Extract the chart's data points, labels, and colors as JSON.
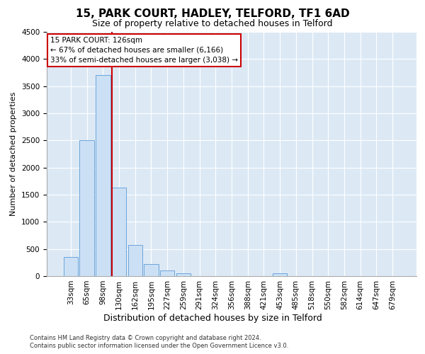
{
  "title1": "15, PARK COURT, HADLEY, TELFORD, TF1 6AD",
  "title2": "Size of property relative to detached houses in Telford",
  "xlabel": "Distribution of detached houses by size in Telford",
  "ylabel": "Number of detached properties",
  "categories": [
    "33sqm",
    "65sqm",
    "98sqm",
    "130sqm",
    "162sqm",
    "195sqm",
    "227sqm",
    "259sqm",
    "291sqm",
    "324sqm",
    "356sqm",
    "388sqm",
    "421sqm",
    "453sqm",
    "485sqm",
    "518sqm",
    "550sqm",
    "582sqm",
    "614sqm",
    "647sqm",
    "679sqm"
  ],
  "values": [
    350,
    2500,
    3700,
    1625,
    575,
    225,
    100,
    55,
    0,
    0,
    0,
    0,
    0,
    55,
    0,
    0,
    0,
    0,
    0,
    0,
    0
  ],
  "bar_color": "#cce0f5",
  "bar_edge_color": "#5b9bd5",
  "property_line_index": 3,
  "property_line_color": "#cc0000",
  "annotation_text": "15 PARK COURT: 126sqm\n← 67% of detached houses are smaller (6,166)\n33% of semi-detached houses are larger (3,038) →",
  "annotation_box_color": "#ffffff",
  "annotation_box_edge": "#cc0000",
  "ylim": [
    0,
    4500
  ],
  "yticks": [
    0,
    500,
    1000,
    1500,
    2000,
    2500,
    3000,
    3500,
    4000,
    4500
  ],
  "footer1": "Contains HM Land Registry data © Crown copyright and database right 2024.",
  "footer2": "Contains public sector information licensed under the Open Government Licence v3.0.",
  "fig_bg_color": "#ffffff",
  "plot_bg_color": "#dce9f5",
  "grid_color": "#ffffff",
  "title1_fontsize": 11,
  "title2_fontsize": 9,
  "xlabel_fontsize": 9,
  "ylabel_fontsize": 8,
  "tick_fontsize": 7.5,
  "footer_fontsize": 6,
  "annotation_fontsize": 7.5
}
